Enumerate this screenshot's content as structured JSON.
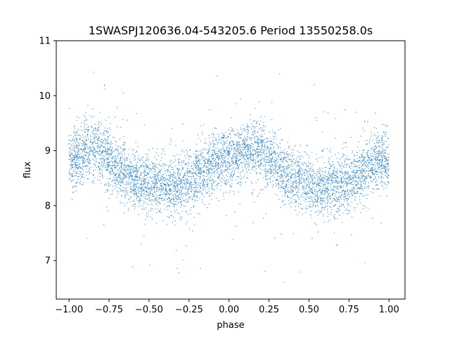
{
  "chart_data": {
    "type": "scatter",
    "title": "1SWASPJ120636.04-543205.6 Period 13550258.0s",
    "xlabel": "phase",
    "ylabel": "flux",
    "xlim": [
      -1.08,
      1.1
    ],
    "ylim": [
      6.3,
      11.0
    ],
    "xticks": [
      -1.0,
      -0.75,
      -0.5,
      -0.25,
      0.0,
      0.25,
      0.5,
      0.75,
      1.0
    ],
    "xtick_labels": [
      "−1.00",
      "−0.75",
      "−0.50",
      "−0.25",
      "0.00",
      "0.25",
      "0.50",
      "0.75",
      "1.00"
    ],
    "yticks": [
      7,
      8,
      9,
      10,
      11
    ],
    "ytick_labels": [
      "7",
      "8",
      "9",
      "10",
      "11"
    ],
    "grid": false,
    "marker_color": "#1f77b4",
    "series": [
      {
        "x": [
          -1.0,
          -0.95,
          -0.9,
          -0.85,
          -0.8,
          -0.75,
          -0.7,
          -0.65,
          -0.6,
          -0.55,
          -0.5,
          -0.45,
          -0.4,
          -0.35,
          -0.3,
          -0.25,
          -0.2,
          -0.15,
          -0.1,
          -0.05,
          0.0,
          0.05,
          0.1,
          0.15,
          0.2,
          0.25,
          0.3,
          0.35,
          0.4,
          0.45,
          0.5,
          0.55,
          0.6,
          0.65,
          0.7,
          0.75,
          0.8,
          0.85,
          0.9,
          0.95,
          1.0
        ],
        "y": [
          8.8,
          8.9,
          9.0,
          9.05,
          9.0,
          8.85,
          8.7,
          8.6,
          8.5,
          8.45,
          8.4,
          8.35,
          8.35,
          8.35,
          8.4,
          8.45,
          8.55,
          8.65,
          8.8,
          8.85,
          8.8,
          8.9,
          9.0,
          9.05,
          9.0,
          8.85,
          8.7,
          8.6,
          8.5,
          8.45,
          8.4,
          8.35,
          8.35,
          8.35,
          8.4,
          8.45,
          8.55,
          8.65,
          8.8,
          8.85,
          8.8
        ]
      }
    ]
  }
}
